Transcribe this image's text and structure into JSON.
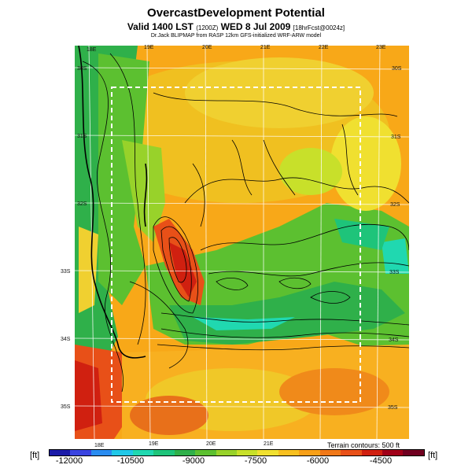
{
  "header": {
    "title": "OvercastDevelopment Potential",
    "valid_main": "Valid 1400 LST",
    "valid_utc": "(1200Z)",
    "valid_date": "WED 8 Jul 2009",
    "forecast_info": "[18hrFcst@0024z]",
    "source": "Dr.Jack BLIPMAP from RASP 12km GFS-initialized WRF-ARW model"
  },
  "map": {
    "lon_top": [
      "18E",
      "19E",
      "20E",
      "21E",
      "22E",
      "23E"
    ],
    "lon_bottom": [
      "18E",
      "19E",
      "20E",
      "21E"
    ],
    "lat_left": [
      "30S",
      "31S",
      "32S",
      "33S",
      "34S",
      "35S"
    ],
    "lat_right": [
      "30S",
      "31S",
      "32S",
      "33S",
      "34S",
      "35S"
    ],
    "terrain_note": "Terrain contours: 500 ft"
  },
  "legend": {
    "unit_left": "[ft]",
    "unit_right": "[ft]",
    "ticks": [
      "-12000",
      "-10500",
      "-9000",
      "-7500",
      "-6000",
      "-4500"
    ],
    "colors": [
      "#1a1aa8",
      "#3a44e0",
      "#2a8cf0",
      "#20c8e8",
      "#20d8b0",
      "#1ec47a",
      "#2fb04a",
      "#5cc030",
      "#98d22a",
      "#c8e02a",
      "#f0e030",
      "#f8c020",
      "#f8a018",
      "#f07818",
      "#e85018",
      "#d02010",
      "#a00018",
      "#700020"
    ]
  }
}
